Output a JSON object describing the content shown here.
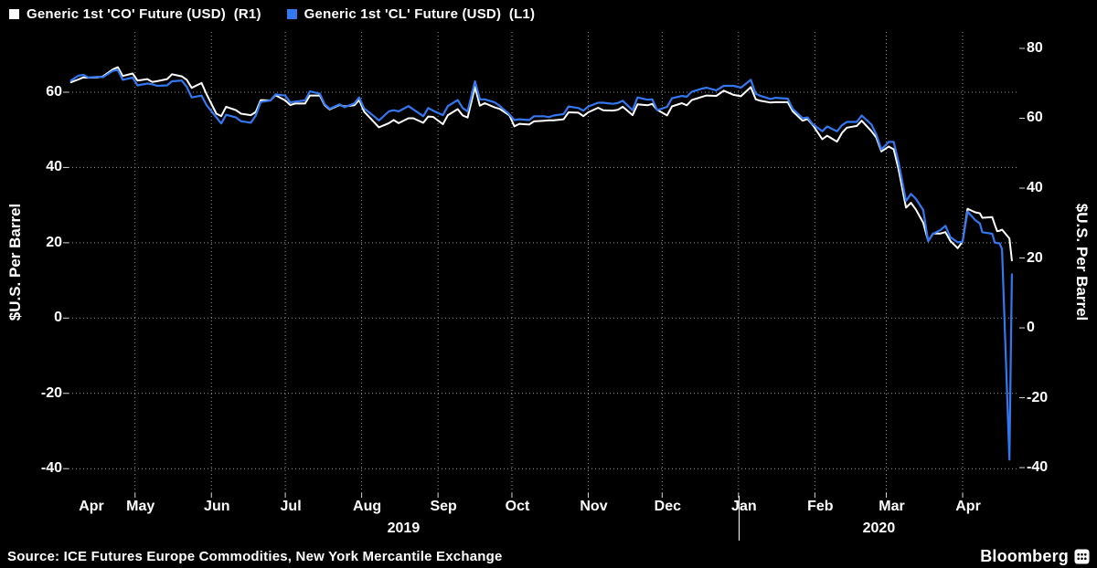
{
  "legend": {
    "items": [
      {
        "label": "Generic 1st 'CO' Future (USD)  (R1)"
      },
      {
        "label": "Generic 1st 'CL' Future (USD)  (L1)"
      }
    ]
  },
  "footer": {
    "source": "Source: ICE Futures Europe Commodities, New York Mercantile Exchange",
    "brand": "Bloomberg"
  },
  "chart_data": {
    "type": "line",
    "title": "",
    "grid": true,
    "grid_color": "#9a9a9a",
    "background_color": "#000000",
    "legend_position": "top-left",
    "x_start": "2019-04-04",
    "x_end": "2020-04-24",
    "year_divider": "2020-01-01",
    "years": [
      {
        "label": "2019"
      },
      {
        "label": "2020"
      }
    ],
    "months": [
      {
        "label": "Apr",
        "start": "2019-04-04",
        "grid": false
      },
      {
        "label": "May",
        "start": "2019-05-01",
        "grid": true
      },
      {
        "label": "Jun",
        "start": "2019-06-01",
        "grid": true
      },
      {
        "label": "Jul",
        "start": "2019-07-01",
        "grid": true
      },
      {
        "label": "Aug",
        "start": "2019-08-01",
        "grid": true
      },
      {
        "label": "Sep",
        "start": "2019-09-01",
        "grid": true
      },
      {
        "label": "Oct",
        "start": "2019-10-01",
        "grid": true
      },
      {
        "label": "Nov",
        "start": "2019-11-01",
        "grid": true
      },
      {
        "label": "Dec",
        "start": "2019-12-01",
        "grid": true
      },
      {
        "label": "Jan",
        "start": "2020-01-01",
        "grid": true
      },
      {
        "label": "Feb",
        "start": "2020-02-01",
        "grid": true
      },
      {
        "label": "Mar",
        "start": "2020-03-01",
        "grid": true
      },
      {
        "label": "Apr",
        "start": "2020-04-01",
        "grid": true
      }
    ],
    "axes": {
      "left": {
        "title": "$U.S. Per Barrel",
        "ticks": [
          60,
          40,
          20,
          0,
          -20,
          -40
        ],
        "max": 76,
        "min": -46.5
      },
      "right": {
        "title": "$U.S. Per Barrel",
        "ticks": [
          80,
          60,
          40,
          20,
          0,
          -20,
          -40
        ],
        "max": 84.7,
        "min": -47.3
      }
    },
    "dates": [
      "2019-04-05",
      "2019-04-08",
      "2019-04-10",
      "2019-04-12",
      "2019-04-16",
      "2019-04-18",
      "2019-04-22",
      "2019-04-24",
      "2019-04-26",
      "2019-04-30",
      "2019-05-02",
      "2019-05-06",
      "2019-05-08",
      "2019-05-10",
      "2019-05-14",
      "2019-05-16",
      "2019-05-20",
      "2019-05-22",
      "2019-05-24",
      "2019-05-28",
      "2019-05-30",
      "2019-06-03",
      "2019-06-05",
      "2019-06-07",
      "2019-06-11",
      "2019-06-13",
      "2019-06-17",
      "2019-06-19",
      "2019-06-21",
      "2019-06-25",
      "2019-06-27",
      "2019-07-01",
      "2019-07-03",
      "2019-07-05",
      "2019-07-09",
      "2019-07-11",
      "2019-07-15",
      "2019-07-17",
      "2019-07-19",
      "2019-07-23",
      "2019-07-25",
      "2019-07-29",
      "2019-07-31",
      "2019-08-02",
      "2019-08-06",
      "2019-08-08",
      "2019-08-12",
      "2019-08-14",
      "2019-08-16",
      "2019-08-20",
      "2019-08-22",
      "2019-08-26",
      "2019-08-28",
      "2019-08-30",
      "2019-09-03",
      "2019-09-05",
      "2019-09-09",
      "2019-09-11",
      "2019-09-13",
      "2019-09-16",
      "2019-09-18",
      "2019-09-20",
      "2019-09-24",
      "2019-09-26",
      "2019-09-30",
      "2019-10-02",
      "2019-10-04",
      "2019-10-08",
      "2019-10-10",
      "2019-10-14",
      "2019-10-16",
      "2019-10-18",
      "2019-10-22",
      "2019-10-24",
      "2019-10-28",
      "2019-10-30",
      "2019-11-01",
      "2019-11-05",
      "2019-11-07",
      "2019-11-11",
      "2019-11-13",
      "2019-11-15",
      "2019-11-19",
      "2019-11-21",
      "2019-11-25",
      "2019-11-27",
      "2019-11-29",
      "2019-12-03",
      "2019-12-05",
      "2019-12-09",
      "2019-12-11",
      "2019-12-13",
      "2019-12-17",
      "2019-12-19",
      "2019-12-23",
      "2019-12-26",
      "2019-12-30",
      "2020-01-02",
      "2020-01-06",
      "2020-01-08",
      "2020-01-10",
      "2020-01-14",
      "2020-01-16",
      "2020-01-21",
      "2020-01-23",
      "2020-01-27",
      "2020-01-29",
      "2020-01-31",
      "2020-02-04",
      "2020-02-06",
      "2020-02-10",
      "2020-02-12",
      "2020-02-14",
      "2020-02-18",
      "2020-02-20",
      "2020-02-24",
      "2020-02-26",
      "2020-02-28",
      "2020-03-02",
      "2020-03-04",
      "2020-03-06",
      "2020-03-09",
      "2020-03-11",
      "2020-03-13",
      "2020-03-16",
      "2020-03-18",
      "2020-03-20",
      "2020-03-23",
      "2020-03-25",
      "2020-03-27",
      "2020-03-30",
      "2020-04-01",
      "2020-04-03",
      "2020-04-06",
      "2020-04-08",
      "2020-04-09",
      "2020-04-13",
      "2020-04-14",
      "2020-04-15",
      "2020-04-16",
      "2020-04-17",
      "2020-04-20",
      "2020-04-21"
    ],
    "series": [
      {
        "id": "co",
        "name": "Generic 1st 'CO' Future (USD)",
        "axis": "right",
        "color": "#ffffff",
        "width": 2,
        "values": [
          70.3,
          71.1,
          71.7,
          71.6,
          71.7,
          72.0,
          74.0,
          74.6,
          72.1,
          72.8,
          70.8,
          71.2,
          70.4,
          70.6,
          71.2,
          72.6,
          72.0,
          71.0,
          68.7,
          70.1,
          66.9,
          61.3,
          60.6,
          63.3,
          62.3,
          61.3,
          60.9,
          61.8,
          65.2,
          65.1,
          66.6,
          65.1,
          63.8,
          64.2,
          64.2,
          66.5,
          66.5,
          63.7,
          62.5,
          63.8,
          63.4,
          63.7,
          65.2,
          61.9,
          58.9,
          57.4,
          58.6,
          59.5,
          58.6,
          60.0,
          60.0,
          58.7,
          60.5,
          60.4,
          58.3,
          60.9,
          62.6,
          60.8,
          60.2,
          69.0,
          63.6,
          64.3,
          63.1,
          62.7,
          60.8,
          57.7,
          58.4,
          58.2,
          59.1,
          59.3,
          59.4,
          59.4,
          59.7,
          61.7,
          61.6,
          60.6,
          61.7,
          63.0,
          62.3,
          62.2,
          62.4,
          63.3,
          60.9,
          64.0,
          63.7,
          64.1,
          62.4,
          60.8,
          63.4,
          64.3,
          63.7,
          65.2,
          66.1,
          66.5,
          66.4,
          67.9,
          66.7,
          66.3,
          68.9,
          65.4,
          65.0,
          64.5,
          64.6,
          64.6,
          62.0,
          59.3,
          59.8,
          58.2,
          54.0,
          55.0,
          53.3,
          55.8,
          57.3,
          57.8,
          59.3,
          56.3,
          54.4,
          50.5,
          51.9,
          51.1,
          45.3,
          34.4,
          35.8,
          33.9,
          30.1,
          24.9,
          27.0,
          27.0,
          27.4,
          24.9,
          22.8,
          24.7,
          34.1,
          33.1,
          32.8,
          31.5,
          31.7,
          29.6,
          27.7,
          27.8,
          28.1,
          25.6,
          19.3
        ]
      },
      {
        "id": "cl",
        "name": "Generic 1st 'CL' Future (USD)",
        "axis": "left",
        "color": "#3378f0",
        "width": 2.2,
        "values": [
          63.1,
          64.4,
          64.6,
          63.9,
          64.1,
          64.0,
          65.7,
          65.9,
          63.3,
          63.9,
          61.8,
          62.3,
          62.1,
          61.7,
          61.8,
          62.9,
          63.1,
          61.4,
          58.6,
          59.1,
          56.6,
          53.3,
          51.7,
          54.0,
          53.3,
          52.3,
          51.9,
          53.8,
          57.4,
          57.8,
          59.4,
          59.1,
          57.3,
          57.5,
          57.8,
          60.2,
          59.6,
          56.8,
          55.6,
          56.8,
          56.0,
          57.0,
          58.6,
          55.7,
          53.6,
          52.5,
          54.9,
          55.2,
          54.9,
          56.3,
          55.4,
          53.6,
          55.8,
          55.1,
          53.9,
          56.3,
          57.9,
          55.8,
          54.9,
          62.9,
          58.1,
          58.1,
          57.3,
          56.4,
          54.1,
          52.6,
          52.8,
          52.6,
          53.6,
          53.6,
          53.4,
          53.8,
          54.2,
          56.2,
          55.8,
          55.1,
          56.2,
          57.2,
          57.2,
          56.9,
          57.1,
          57.7,
          55.2,
          58.6,
          58.0,
          58.1,
          55.2,
          56.1,
          58.4,
          59.0,
          58.8,
          60.1,
          60.9,
          61.2,
          60.5,
          61.7,
          61.7,
          61.2,
          63.3,
          59.6,
          59.0,
          58.2,
          58.5,
          58.3,
          55.6,
          53.1,
          53.3,
          51.6,
          49.6,
          50.9,
          49.6,
          51.2,
          52.1,
          52.1,
          53.8,
          51.4,
          48.7,
          44.8,
          46.8,
          46.8,
          41.3,
          31.1,
          33.0,
          31.7,
          28.7,
          20.4,
          22.4,
          23.4,
          24.5,
          21.5,
          20.1,
          20.3,
          28.3,
          26.1,
          25.1,
          22.8,
          22.4,
          20.1,
          19.9,
          19.9,
          18.3,
          -37.6,
          11.6
        ]
      }
    ]
  }
}
